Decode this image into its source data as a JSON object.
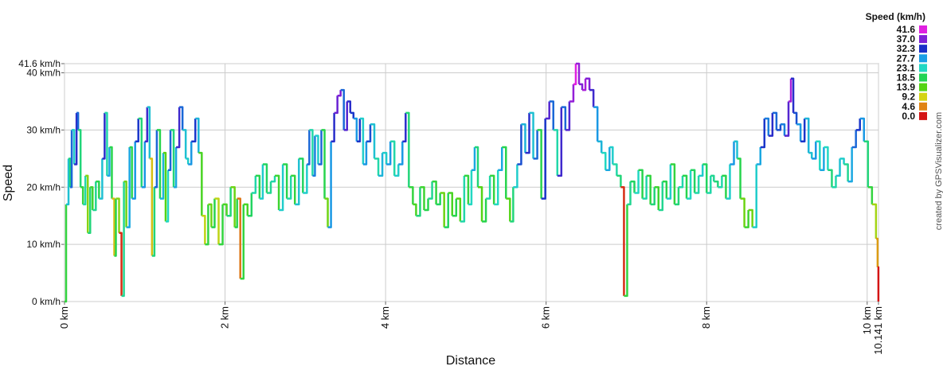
{
  "chart_data": {
    "type": "line",
    "x_label": "Distance",
    "y_label": "Speed",
    "credit": "created by GPSVisualizer.com",
    "xlim": [
      0,
      10.141
    ],
    "ylim": [
      0,
      41.6
    ],
    "xticks": [
      {
        "value": 0,
        "label": "0 km"
      },
      {
        "value": 2,
        "label": "2 km"
      },
      {
        "value": 4,
        "label": "4 km"
      },
      {
        "value": 6,
        "label": "6 km"
      },
      {
        "value": 8,
        "label": "8 km"
      },
      {
        "value": 10,
        "label": "10 km"
      },
      {
        "value": 10.141,
        "label": "10.141 km"
      }
    ],
    "yticks": [
      {
        "value": 0,
        "label": "0 km/h"
      },
      {
        "value": 10,
        "label": "10 km/h"
      },
      {
        "value": 20,
        "label": "20 km/h"
      },
      {
        "value": 30,
        "label": "30 km/h"
      },
      {
        "value": 40,
        "label": "40 km/h"
      },
      {
        "value": 41.6,
        "label": "41.6 km/h"
      }
    ],
    "grid": true,
    "legend": {
      "title": "Speed (km/h)",
      "position": "top-right",
      "stops": [
        {
          "value": 41.6,
          "color": "#e020e0"
        },
        {
          "value": 37,
          "label": "37.0",
          "color": "#7f1fd6"
        },
        {
          "value": 32.3,
          "color": "#1a2fc8"
        },
        {
          "value": 27.7,
          "color": "#1a9fe6"
        },
        {
          "value": 23.1,
          "color": "#22d8c4"
        },
        {
          "value": 18.5,
          "color": "#22d454"
        },
        {
          "value": 13.9,
          "color": "#55d414"
        },
        {
          "value": 9.2,
          "color": "#d4d414"
        },
        {
          "value": 4.6,
          "color": "#e08414"
        },
        {
          "value": 0,
          "label": "0.0",
          "color": "#d41414"
        }
      ]
    },
    "x": [
      0,
      0.02,
      0.05,
      0.07,
      0.09,
      0.12,
      0.15,
      0.17,
      0.2,
      0.23,
      0.26,
      0.29,
      0.32,
      0.35,
      0.39,
      0.43,
      0.47,
      0.5,
      0.53,
      0.56,
      0.59,
      0.62,
      0.64,
      0.68,
      0.71,
      0.74,
      0.77,
      0.81,
      0.84,
      0.88,
      0.92,
      0.96,
      1.0,
      1.03,
      1.06,
      1.09,
      1.12,
      1.15,
      1.19,
      1.23,
      1.26,
      1.29,
      1.32,
      1.36,
      1.39,
      1.43,
      1.47,
      1.51,
      1.54,
      1.58,
      1.63,
      1.67,
      1.71,
      1.75,
      1.79,
      1.83,
      1.87,
      1.92,
      1.97,
      2.02,
      2.07,
      2.12,
      2.15,
      2.19,
      2.23,
      2.28,
      2.33,
      2.38,
      2.43,
      2.47,
      2.52,
      2.57,
      2.62,
      2.67,
      2.72,
      2.77,
      2.82,
      2.87,
      2.92,
      2.97,
      3.02,
      3.05,
      3.09,
      3.12,
      3.16,
      3.2,
      3.24,
      3.28,
      3.32,
      3.36,
      3.4,
      3.44,
      3.48,
      3.52,
      3.56,
      3.6,
      3.64,
      3.68,
      3.72,
      3.76,
      3.81,
      3.86,
      3.91,
      3.96,
      4.01,
      4.06,
      4.11,
      4.16,
      4.21,
      4.25,
      4.29,
      4.34,
      4.38,
      4.43,
      4.48,
      4.53,
      4.58,
      4.63,
      4.68,
      4.73,
      4.78,
      4.83,
      4.88,
      4.93,
      4.98,
      5.03,
      5.07,
      5.11,
      5.15,
      5.2,
      5.25,
      5.3,
      5.35,
      5.4,
      5.45,
      5.5,
      5.55,
      5.59,
      5.64,
      5.69,
      5.74,
      5.79,
      5.84,
      5.89,
      5.94,
      5.99,
      6.04,
      6.09,
      6.14,
      6.19,
      6.24,
      6.29,
      6.34,
      6.37,
      6.41,
      6.45,
      6.49,
      6.54,
      6.59,
      6.64,
      6.69,
      6.74,
      6.79,
      6.83,
      6.88,
      6.93,
      6.97,
      7.01,
      7.05,
      7.1,
      7.15,
      7.2,
      7.25,
      7.3,
      7.35,
      7.4,
      7.45,
      7.5,
      7.55,
      7.6,
      7.65,
      7.7,
      7.75,
      7.8,
      7.85,
      7.9,
      7.95,
      8.0,
      8.05,
      8.09,
      8.14,
      8.19,
      8.24,
      8.29,
      8.34,
      8.38,
      8.42,
      8.47,
      8.52,
      8.57,
      8.62,
      8.67,
      8.72,
      8.77,
      8.82,
      8.87,
      8.92,
      8.97,
      9.02,
      9.05,
      9.08,
      9.12,
      9.17,
      9.22,
      9.27,
      9.31,
      9.36,
      9.41,
      9.46,
      9.51,
      9.56,
      9.61,
      9.66,
      9.71,
      9.76,
      9.81,
      9.86,
      9.91,
      9.96,
      10.01,
      10.06,
      10.11,
      10.13,
      10.14
    ],
    "values": [
      0,
      17,
      25,
      20,
      30,
      24,
      33,
      30,
      20,
      17,
      22,
      12,
      20,
      16,
      21,
      18,
      25,
      33,
      22,
      27,
      18,
      8,
      18,
      12,
      1,
      21,
      13,
      27,
      18,
      28,
      32,
      20,
      28,
      34,
      25,
      8,
      20,
      30,
      18,
      26,
      14,
      23,
      30,
      20,
      27,
      34,
      30,
      25,
      24,
      28,
      32,
      26,
      15,
      10,
      17,
      13,
      18,
      10,
      17,
      15,
      20,
      13,
      18,
      4,
      17,
      15,
      19,
      22,
      18,
      24,
      19,
      21,
      22,
      16,
      24,
      18,
      22,
      17,
      25,
      19,
      24,
      30,
      22,
      29,
      24,
      30,
      18,
      13,
      28,
      33,
      36,
      37,
      30,
      35,
      33,
      32,
      28,
      32,
      24,
      28,
      31,
      25,
      22,
      26,
      24,
      28,
      22,
      24,
      28,
      33,
      20,
      17,
      15,
      20,
      16,
      18,
      21,
      17,
      19,
      13,
      19,
      15,
      18,
      14,
      22,
      17,
      23,
      27,
      20,
      14,
      18,
      22,
      17,
      23,
      27,
      18,
      14,
      20,
      24,
      31,
      26,
      33,
      25,
      30,
      18,
      32,
      35,
      30,
      22,
      34,
      30,
      35,
      38,
      41.6,
      38,
      37,
      39,
      37,
      34,
      28,
      26,
      23,
      27,
      24,
      22,
      20,
      1,
      17,
      21,
      19,
      23,
      18,
      22,
      17,
      20,
      16,
      21,
      18,
      24,
      17,
      20,
      22,
      18,
      23,
      19,
      22,
      24,
      19,
      22,
      21,
      20,
      22,
      18,
      24,
      28,
      25,
      18,
      13,
      16,
      13,
      24,
      27,
      32,
      29,
      33,
      30,
      31,
      29,
      35,
      39,
      33,
      31,
      28,
      32,
      26,
      25,
      28,
      23,
      27,
      23,
      20,
      22,
      25,
      24,
      21,
      27,
      30,
      32,
      28,
      20,
      17,
      11,
      6,
      0
    ]
  }
}
